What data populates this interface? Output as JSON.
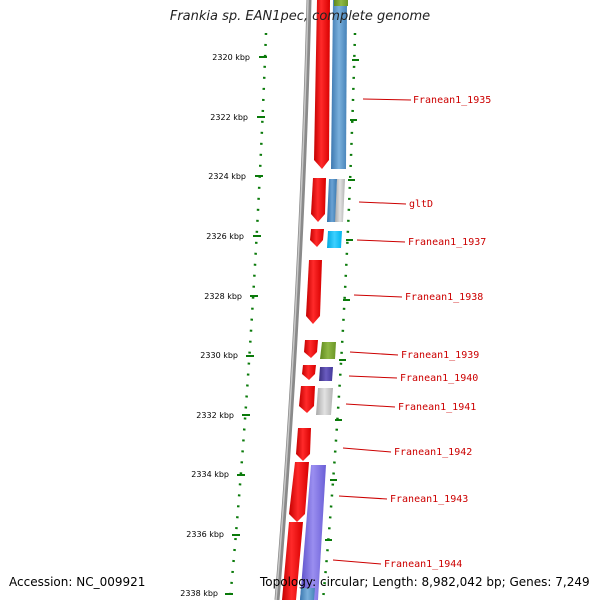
{
  "map": {
    "title": "Frankia sp. EAN1pec, complete genome",
    "accession": "Accession: NC_009921",
    "summary": "Topology: circular; Length: 8,982,042 bp; Genes: 7,249",
    "ticks": [
      "2320 kbp",
      "2322 kbp",
      "2324 kbp",
      "2326 kbp",
      "2328 kbp",
      "2330 kbp",
      "2332 kbp",
      "2334 kbp",
      "2336 kbp",
      "2338 kbp"
    ],
    "genes": [
      {
        "label": "Franean1_1935"
      },
      {
        "label": "gltD"
      },
      {
        "label": "Franean1_1937"
      },
      {
        "label": "Franean1_1938"
      },
      {
        "label": "Franean1_1939"
      },
      {
        "label": "Franean1_1940"
      },
      {
        "label": "Franean1_1941"
      },
      {
        "label": "Franean1_1942"
      },
      {
        "label": "Franean1_1943"
      },
      {
        "label": "Franean1_1944"
      }
    ],
    "colors": {
      "tick": "#0a7a0a",
      "label": "#cc0000",
      "backbone": "#8a8a8a",
      "gene": "#ff0000"
    }
  }
}
